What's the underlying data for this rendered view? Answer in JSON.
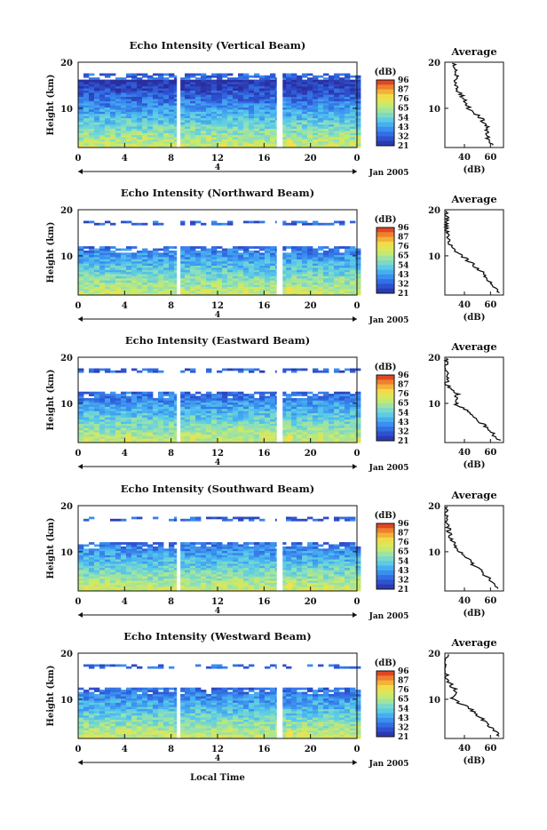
{
  "figure": {
    "x_axis_label": "Local Time",
    "y_axis_label": "Height (km)",
    "colorbar_label": "(dB)",
    "colorbar_ticks": [
      "96",
      "87",
      "76",
      "65",
      "54",
      "43",
      "32",
      "21"
    ],
    "date_label": "Jan 2005",
    "day_marker": "4",
    "average_title": "Average",
    "average_xlabel": "(dB)"
  },
  "chart_data": [
    {
      "type": "heatmap",
      "title": "Echo Intensity (Vertical Beam)",
      "x_ticks": [
        "0",
        "4",
        "8",
        "12",
        "16",
        "20",
        "0"
      ],
      "xlim": [
        0,
        24
      ],
      "y_ticks": [
        "20",
        "10"
      ],
      "ylim": [
        1.5,
        20
      ],
      "color_range_db": [
        21,
        96
      ],
      "data_gaps_hours": [
        [
          8.5,
          8.8
        ],
        [
          17.1,
          17.6
        ]
      ],
      "echo_top_km": 19.0,
      "profile": {
        "heights_km": [
          2,
          4,
          6,
          8,
          10,
          12,
          14,
          16,
          18,
          20
        ],
        "db": [
          62,
          57,
          58,
          52,
          43,
          40,
          34,
          34,
          33,
          32
        ],
        "xlim": [
          25,
          70
        ],
        "x_ticks": [
          "40",
          "60"
        ]
      }
    },
    {
      "type": "heatmap",
      "title": "Echo Intensity (Northward Beam)",
      "x_ticks": [
        "0",
        "4",
        "8",
        "12",
        "16",
        "20",
        "0"
      ],
      "xlim": [
        0,
        24
      ],
      "y_ticks": [
        "20",
        "10"
      ],
      "ylim": [
        1.5,
        20
      ],
      "color_range_db": [
        21,
        96
      ],
      "data_gaps_hours": [
        [
          8.5,
          8.8
        ],
        [
          17.1,
          17.6
        ]
      ],
      "echo_top_km": 12.0,
      "profile": {
        "heights_km": [
          2,
          4,
          6,
          8,
          10,
          12,
          14,
          16,
          18,
          20
        ],
        "db": [
          66,
          60,
          55,
          47,
          38,
          30,
          27,
          26,
          26,
          27
        ],
        "xlim": [
          25,
          70
        ],
        "x_ticks": [
          "40",
          "60"
        ]
      }
    },
    {
      "type": "heatmap",
      "title": "Echo Intensity (Eastward Beam)",
      "x_ticks": [
        "0",
        "4",
        "8",
        "12",
        "16",
        "20",
        "0"
      ],
      "xlim": [
        0,
        24
      ],
      "y_ticks": [
        "20",
        "10"
      ],
      "ylim": [
        1.5,
        20
      ],
      "color_range_db": [
        21,
        96
      ],
      "data_gaps_hours": [
        [
          8.5,
          8.8
        ],
        [
          17.1,
          17.6
        ]
      ],
      "echo_top_km": 12.5,
      "profile": {
        "heights_km": [
          2,
          4,
          6,
          8,
          10,
          12,
          14,
          16,
          18,
          20
        ],
        "db": [
          66,
          60,
          52,
          44,
          33,
          35,
          27,
          26,
          25,
          26
        ],
        "xlim": [
          25,
          70
        ],
        "x_ticks": [
          "40",
          "60"
        ]
      }
    },
    {
      "type": "heatmap",
      "title": "Echo Intensity (Southward Beam)",
      "x_ticks": [
        "0",
        "4",
        "8",
        "12",
        "16",
        "20",
        "0"
      ],
      "xlim": [
        0,
        24
      ],
      "y_ticks": [
        "20",
        "10"
      ],
      "ylim": [
        1.5,
        20
      ],
      "color_range_db": [
        21,
        96
      ],
      "data_gaps_hours": [
        [
          8.5,
          8.8
        ],
        [
          17.1,
          17.6
        ]
      ],
      "echo_top_km": 12.0,
      "profile": {
        "heights_km": [
          2,
          4,
          6,
          8,
          10,
          12,
          14,
          16,
          18,
          20
        ],
        "db": [
          67,
          60,
          52,
          44,
          36,
          31,
          28,
          27,
          26,
          26
        ],
        "xlim": [
          25,
          70
        ],
        "x_ticks": [
          "40",
          "60"
        ]
      }
    },
    {
      "type": "heatmap",
      "title": "Echo Intensity (Westward Beam)",
      "x_ticks": [
        "0",
        "4",
        "8",
        "12",
        "16",
        "20",
        "0"
      ],
      "xlim": [
        0,
        24
      ],
      "y_ticks": [
        "20",
        "10"
      ],
      "ylim": [
        1.5,
        20
      ],
      "color_range_db": [
        21,
        96
      ],
      "data_gaps_hours": [
        [
          8.5,
          8.8
        ],
        [
          17.1,
          17.6
        ]
      ],
      "echo_top_km": 12.5,
      "profile": {
        "heights_km": [
          2,
          4,
          6,
          8,
          10,
          12,
          14,
          16,
          18,
          20
        ],
        "db": [
          67,
          60,
          52,
          45,
          31,
          33,
          27,
          26,
          25,
          26
        ],
        "xlim": [
          25,
          70
        ],
        "x_ticks": [
          "40",
          "60"
        ]
      }
    }
  ]
}
